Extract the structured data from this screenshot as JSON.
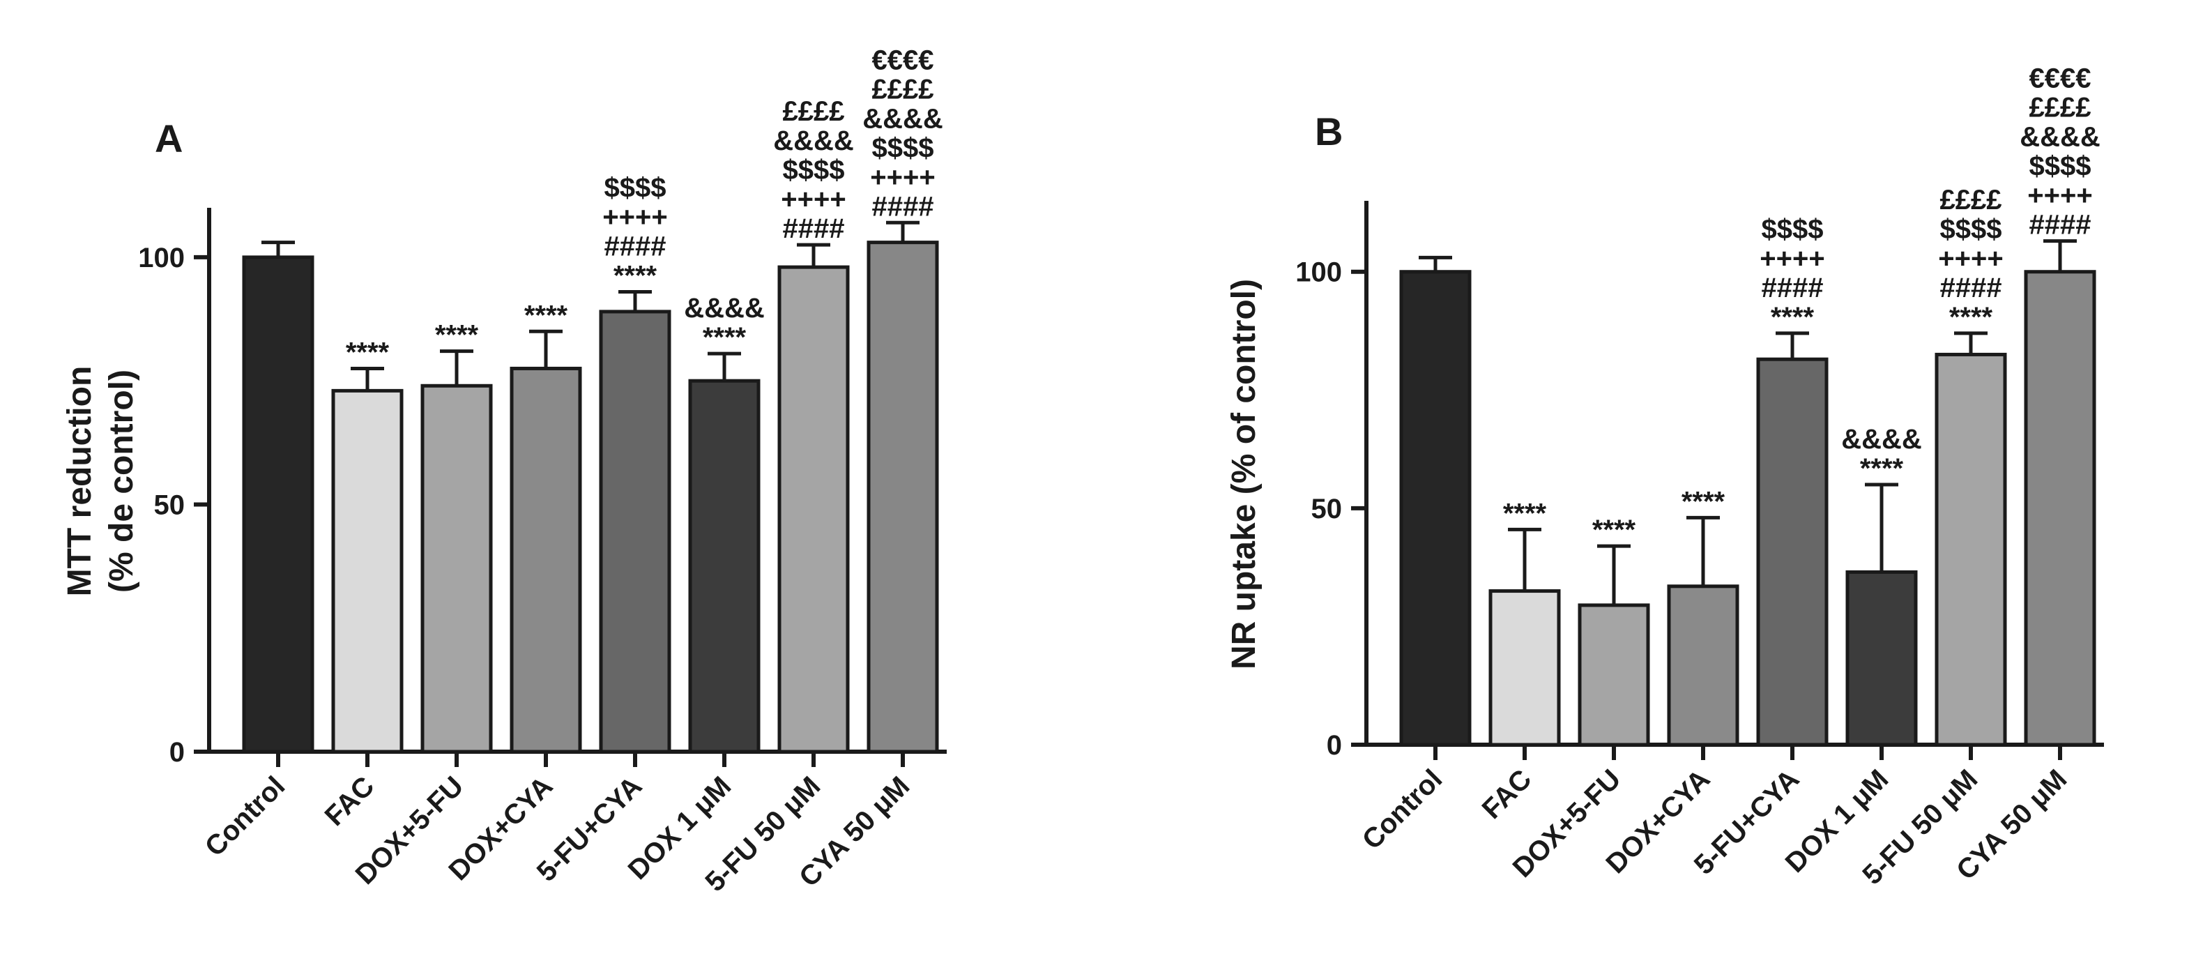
{
  "chart_data": [
    {
      "panel": "A",
      "type": "bar",
      "ylabel_line1": "MTT reduction",
      "ylabel_line2": "(% de control)",
      "xlabel": "",
      "ylim": [
        0,
        110
      ],
      "yticks": [
        0,
        50,
        100
      ],
      "categories": [
        "Control",
        "FAC",
        "DOX+5-FU",
        "DOX+CYA",
        "5-FU+CYA",
        "DOX 1 μM",
        "5-FU 50 μM",
        "CYA 50 μM"
      ],
      "values": [
        100,
        73,
        74,
        77.5,
        89,
        75,
        98,
        103
      ],
      "errors": [
        3,
        4.5,
        7,
        7.5,
        4,
        5.5,
        4.5,
        4
      ],
      "colors": [
        "#262626",
        "#dadada",
        "#a5a5a5",
        "#8a8a8a",
        "#676767",
        "#3c3c3c",
        "#a5a5a5",
        "#878787"
      ],
      "annotations": [
        [],
        [
          "****"
        ],
        [
          "****"
        ],
        [
          "****"
        ],
        [
          "$$$$",
          "++++",
          "####",
          "****"
        ],
        [
          "&&&&",
          "****"
        ],
        [
          "££££",
          "&&&&",
          "$$$$",
          "++++",
          "####"
        ],
        [
          "€€€€",
          "££££",
          "&&&&",
          "$$$$",
          "++++",
          "####"
        ]
      ]
    },
    {
      "panel": "B",
      "type": "bar",
      "ylabel_line1": "NR uptake (% of control)",
      "ylabel_line2": "",
      "xlabel": "",
      "ylim": [
        0,
        115
      ],
      "yticks": [
        0,
        50,
        100
      ],
      "categories": [
        "Control",
        "FAC",
        "DOX+5-FU",
        "DOX+CYA",
        "5-FU+CYA",
        "DOX 1 μM",
        "5-FU 50 μM",
        "CYA 50 μM"
      ],
      "values": [
        100,
        32.5,
        29.5,
        33.5,
        81.5,
        36.5,
        82.5,
        100
      ],
      "errors": [
        3,
        13,
        12.5,
        14.5,
        5.5,
        18.5,
        4.5,
        6.5
      ],
      "colors": [
        "#262626",
        "#dadada",
        "#a5a5a5",
        "#8a8a8a",
        "#676767",
        "#3c3c3c",
        "#a5a5a5",
        "#878787"
      ],
      "annotations": [
        [],
        [
          "****"
        ],
        [
          "****"
        ],
        [
          "****"
        ],
        [
          "$$$$",
          "++++",
          "####",
          "****"
        ],
        [
          "&&&&",
          "****"
        ],
        [
          "££££",
          "$$$$",
          "++++",
          "####",
          "****"
        ],
        [
          "€€€€",
          "££££",
          "&&&&",
          "$$$$",
          "++++",
          "####"
        ]
      ]
    }
  ]
}
